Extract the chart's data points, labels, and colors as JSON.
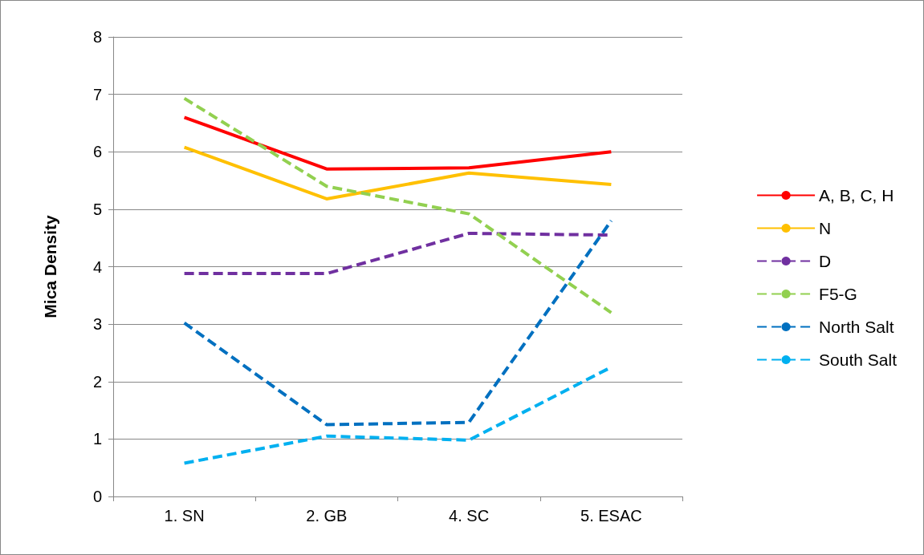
{
  "chart_data": {
    "type": "line",
    "ylabel": "Mica Density",
    "categories": [
      "1. SN",
      "2. GB",
      "4. SC",
      "5. ESAC"
    ],
    "series": [
      {
        "name": "A, B, C, H",
        "color": "#ff0000",
        "line_style": "solid",
        "values": [
          6.6,
          5.7,
          5.72,
          6.0
        ]
      },
      {
        "name": "N",
        "color": "#ffc000",
        "line_style": "solid",
        "values": [
          6.08,
          5.18,
          5.63,
          5.43
        ]
      },
      {
        "name": "D",
        "color": "#7030a0",
        "line_style": "dashed",
        "values": [
          3.88,
          3.88,
          4.58,
          4.55
        ]
      },
      {
        "name": "F5-G",
        "color": "#92d050",
        "line_style": "dashed",
        "values": [
          6.93,
          5.4,
          4.92,
          3.2
        ]
      },
      {
        "name": "North Salt",
        "color": "#0070c0",
        "line_style": "dashed",
        "values": [
          3.02,
          1.25,
          1.29,
          4.8
        ]
      },
      {
        "name": "South Salt",
        "color": "#00b0f0",
        "line_style": "dashed",
        "values": [
          0.58,
          1.05,
          0.98,
          2.25
        ]
      }
    ],
    "ylim": [
      0,
      8
    ],
    "yticks": [
      0,
      1,
      2,
      3,
      4,
      5,
      6,
      7,
      8
    ],
    "grid": "y",
    "legend": "right",
    "marker": "none"
  }
}
